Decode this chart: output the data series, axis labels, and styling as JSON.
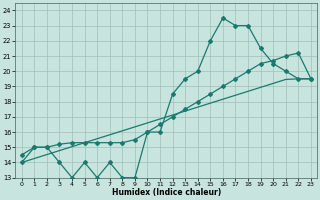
{
  "xlabel": "Humidex (Indice chaleur)",
  "x": [
    0,
    1,
    2,
    3,
    4,
    5,
    6,
    7,
    8,
    9,
    10,
    11,
    12,
    13,
    14,
    15,
    16,
    17,
    18,
    19,
    20,
    21,
    22,
    23
  ],
  "line1": [
    14,
    15,
    15,
    14,
    13,
    14,
    13,
    14,
    13,
    13,
    16,
    16,
    18.5,
    19.5,
    20,
    22,
    23.5,
    23,
    23,
    21.5,
    20.5,
    20,
    19.5,
    19.5
  ],
  "line2": [
    14.5,
    15,
    15,
    15.2,
    15.3,
    15.3,
    15.3,
    15.3,
    15.3,
    15.5,
    16,
    16.5,
    17,
    17.5,
    18,
    18.5,
    19,
    19.5,
    20,
    20.5,
    20.7,
    21,
    21.2,
    19.5
  ],
  "line3": [
    14.0,
    14.26,
    14.52,
    14.78,
    15.04,
    15.3,
    15.56,
    15.82,
    16.08,
    16.34,
    16.6,
    16.86,
    17.12,
    17.38,
    17.64,
    17.9,
    18.16,
    18.42,
    18.68,
    18.94,
    19.2,
    19.46,
    19.5,
    19.5
  ],
  "ylim": [
    13,
    24.5
  ],
  "xlim": [
    -0.5,
    23.5
  ],
  "yticks": [
    13,
    14,
    15,
    16,
    17,
    18,
    19,
    20,
    21,
    22,
    23,
    24
  ],
  "xticks": [
    0,
    1,
    2,
    3,
    4,
    5,
    6,
    7,
    8,
    9,
    10,
    11,
    12,
    13,
    14,
    15,
    16,
    17,
    18,
    19,
    20,
    21,
    22,
    23
  ],
  "bg_color": "#c8e4de",
  "grid_color": "#9dbfb8",
  "line_color": "#1a7a6e",
  "fig_bg": "#c8e4de"
}
